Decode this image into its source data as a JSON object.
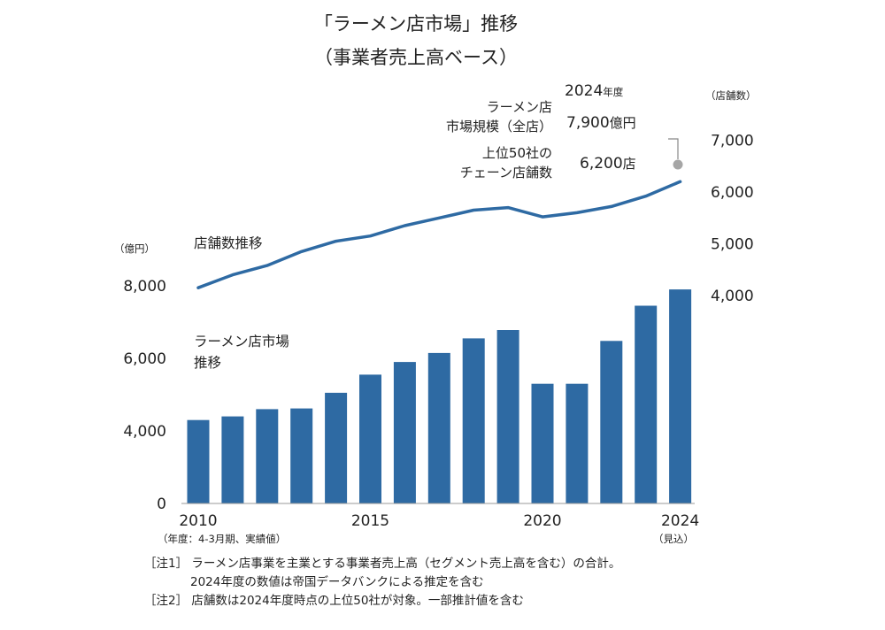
{
  "chart_data": {
    "type": "bar+line",
    "title_lines": [
      "「ラーメン店市場」推移",
      "（事業者売上高ベース）"
    ],
    "x_ticks": [
      "2010",
      "2015",
      "2020",
      "2024"
    ],
    "x_tick_years": [
      2010,
      2015,
      2020,
      2024
    ],
    "x_sub_left": "（年度：4-3月期、実績値）",
    "x_sub_right": "（見込）",
    "left_unit": "（億円）",
    "right_unit": "（店舗数）",
    "left_ticks": [
      "0",
      "4,000",
      "6,000",
      "8,000"
    ],
    "left_tick_values": [
      0,
      4000,
      6000,
      8000
    ],
    "right_ticks": [
      "4,000",
      "5,000",
      "6,000",
      "7,000"
    ],
    "right_tick_values": [
      4000,
      5000,
      6000,
      7000
    ],
    "years": [
      2010,
      2011,
      2012,
      2013,
      2014,
      2015,
      2016,
      2017,
      2018,
      2019,
      2020,
      2021,
      2022,
      2023,
      2024
    ],
    "market_size_series": {
      "label_lines": [
        "ラーメン店市場",
        "推移"
      ],
      "color": "#2e6aa3",
      "values": [
        4300,
        4400,
        4600,
        4620,
        5050,
        5550,
        5900,
        6150,
        6550,
        6780,
        5300,
        5300,
        6480,
        7450,
        7900
      ]
    },
    "store_count_series": {
      "label": "店舗数推移",
      "color": "#2e6aa3",
      "values": [
        4150,
        4400,
        4580,
        4850,
        5050,
        5150,
        5350,
        5500,
        5650,
        5700,
        5520,
        5600,
        5720,
        5920,
        6200
      ]
    },
    "annotations": {
      "year_label": "2024年度",
      "market_label_lines": [
        "ラーメン店",
        "市場規模（全店）"
      ],
      "market_value": "7,900億円",
      "store_label_lines": [
        "上位50社の",
        "チェーン店舗数"
      ],
      "store_value": "6,200店"
    },
    "notes": [
      "［注1］ ラーメン店事業を主業とする事業者売上高（セグメント売上高を含む）の合計。",
      "2024年度の数値は帝国データバンクによる推定を含む",
      "［注2］ 店舗数は2024年度時点の上位50社が対象。一部推計値を含む"
    ]
  }
}
